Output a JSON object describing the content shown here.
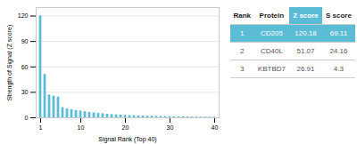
{
  "chart_data": {
    "type": "bar",
    "xlabel": "Signal Rank (Top 40)",
    "ylabel": "Strength of Signal (Z score)",
    "x": [
      1,
      2,
      3,
      4,
      5,
      6,
      7,
      8,
      9,
      10,
      11,
      12,
      13,
      14,
      15,
      16,
      17,
      18,
      19,
      20,
      21,
      22,
      23,
      24,
      25,
      26,
      27,
      28,
      29,
      30,
      31,
      32,
      33,
      34,
      35,
      36,
      37,
      38,
      39,
      40
    ],
    "values": [
      120.18,
      51.07,
      26.91,
      25.5,
      24.5,
      12.0,
      10.5,
      9.5,
      8.5,
      7.8,
      7.2,
      6.5,
      5.8,
      5.2,
      4.8,
      4.2,
      3.8,
      3.5,
      3.2,
      2.9,
      2.7,
      2.5,
      2.3,
      2.1,
      1.9,
      1.8,
      1.6,
      1.5,
      1.4,
      1.3,
      1.2,
      1.1,
      1.0,
      0.95,
      0.9,
      0.85,
      0.8,
      0.75,
      0.7,
      0.65
    ],
    "color": "#5bbcd6",
    "xlim": [
      0,
      41
    ],
    "xticks": [
      1,
      10,
      20,
      30,
      40
    ],
    "ylim": [
      0,
      130
    ],
    "yticks": [
      0,
      30,
      60,
      90,
      120
    ],
    "grid": true,
    "table": {
      "header": [
        "Rank",
        "Protein",
        "Z score",
        "S score"
      ],
      "rows": [
        [
          "1",
          "CD205",
          "120.18",
          "69.11"
        ],
        [
          "2",
          "CD40L",
          "51.07",
          "24.16"
        ],
        [
          "3",
          "KBTBD7",
          "26.91",
          "4.3"
        ]
      ]
    }
  }
}
